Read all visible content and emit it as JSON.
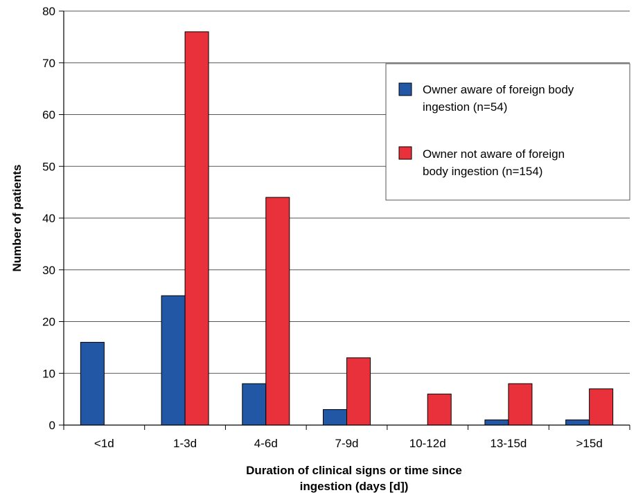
{
  "chart_data": {
    "type": "bar",
    "title": "",
    "xlabel": [
      "Duration of clinical signs or time since",
      "ingestion (days [d])"
    ],
    "ylabel": "Number of patients",
    "ylim": [
      0,
      80
    ],
    "yticks": [
      0,
      10,
      20,
      30,
      40,
      50,
      60,
      70,
      80
    ],
    "grid": true,
    "legend_position": "top-right",
    "categories": [
      "<1d",
      "1-3d",
      "4-6d",
      "7-9d",
      "10-12d",
      "13-15d",
      ">15d"
    ],
    "series": [
      {
        "name": [
          "Owner aware of foreign body",
          "ingestion (n=54)"
        ],
        "color": "#2157a4",
        "values": [
          16,
          25,
          8,
          3,
          0,
          1,
          1
        ]
      },
      {
        "name": [
          "Owner not aware of foreign",
          "body ingestion (n=154)"
        ],
        "color": "#e8313a",
        "values": [
          0,
          76,
          44,
          13,
          6,
          8,
          7
        ]
      }
    ]
  }
}
